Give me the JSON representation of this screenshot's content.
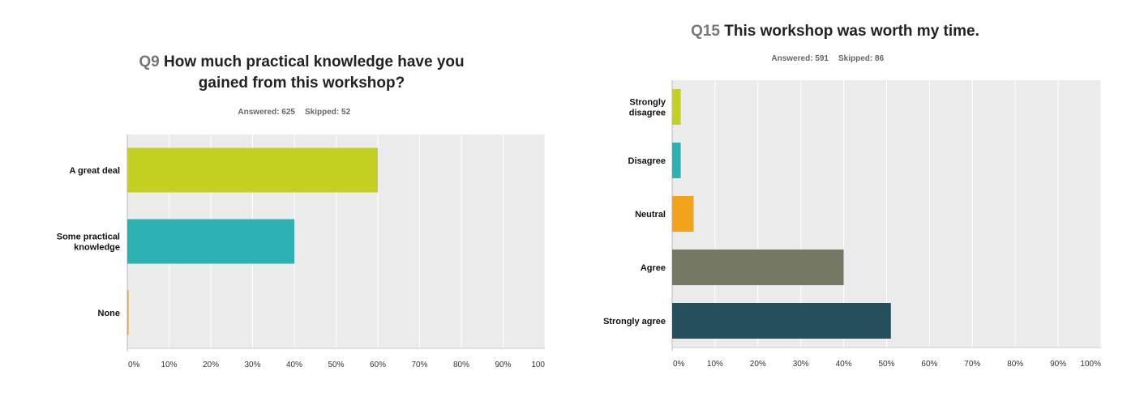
{
  "chart_data": [
    {
      "type": "bar",
      "orientation": "horizontal",
      "question_number": "Q9",
      "title_lines": [
        "How much practical knowledge have you",
        "gained from this workshop?"
      ],
      "answered": "Answered: 625",
      "skipped": "Skipped: 52",
      "categories": [
        [
          "A great deal"
        ],
        [
          "Some practical",
          "knowledge"
        ],
        [
          "None"
        ]
      ],
      "values": [
        60,
        40,
        0.3
      ],
      "colors": [
        "#c3cf21",
        "#2db1b3",
        "#f0a31b"
      ],
      "xlim": [
        0,
        100
      ],
      "ticks": [
        "0%",
        "10%",
        "20%",
        "30%",
        "40%",
        "50%",
        "60%",
        "70%",
        "80%",
        "90%",
        "100"
      ],
      "grid": true
    },
    {
      "type": "bar",
      "orientation": "horizontal",
      "question_number": "Q15",
      "title_lines": [
        "This workshop was worth my time."
      ],
      "answered": "Answered: 591",
      "skipped": "Skipped: 86",
      "categories": [
        [
          "Strongly",
          "disagree"
        ],
        [
          "Disagree"
        ],
        [
          "Neutral"
        ],
        [
          "Agree"
        ],
        [
          "Strongly agree"
        ]
      ],
      "values": [
        2,
        2,
        5,
        40,
        51
      ],
      "colors": [
        "#c3cf21",
        "#2db1b3",
        "#f0a31b",
        "#767866",
        "#254f5c"
      ],
      "xlim": [
        0,
        100
      ],
      "ticks": [
        "0%",
        "10%",
        "20%",
        "30%",
        "40%",
        "50%",
        "60%",
        "70%",
        "80%",
        "90%",
        "100%"
      ],
      "grid": true
    }
  ]
}
